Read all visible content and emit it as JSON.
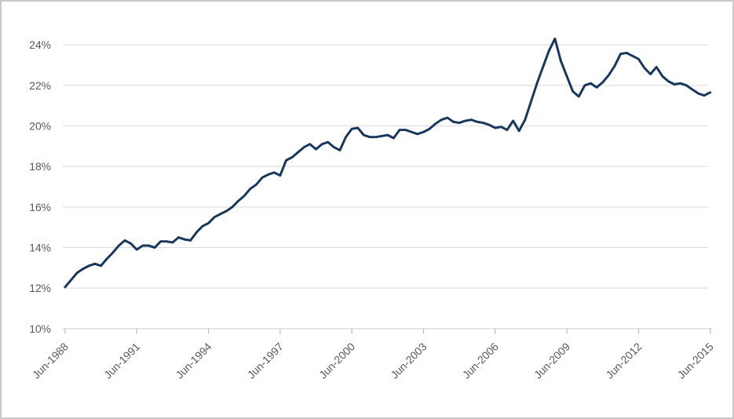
{
  "page": {
    "background": "#ffffff",
    "frame_border_color": "#c9c9c9"
  },
  "style": {
    "gridline_color": "#d9d9d9",
    "axis_color": "#bfbfbf",
    "tick_color": "#bfbfbf",
    "label_color": "#595959",
    "line_width": 3
  },
  "chart_data": {
    "type": "line",
    "frequency": "quarterly",
    "x_start": "Jun-1988",
    "x_end": "Jun-2015",
    "x_tick_labels": [
      "Jun-1988",
      "Jun-1991",
      "Jun-1994",
      "Jun-1997",
      "Jun-2000",
      "Jun-2003",
      "Jun-2006",
      "Jun-2009",
      "Jun-2012",
      "Jun-2015"
    ],
    "x_ticks_every_n_points": 12,
    "y_tick_labels": [
      "10%",
      "12%",
      "14%",
      "16%",
      "18%",
      "20%",
      "22%",
      "24%"
    ],
    "ylim": [
      10,
      25
    ],
    "unit": "%",
    "grid": "horizontal",
    "legend": "none",
    "series": [
      {
        "name": "percentage-series",
        "color": "#17375E",
        "values": [
          12.05,
          12.4,
          12.75,
          12.95,
          13.1,
          13.2,
          13.1,
          13.45,
          13.75,
          14.1,
          14.35,
          14.2,
          13.9,
          14.1,
          14.1,
          14.0,
          14.3,
          14.3,
          14.25,
          14.5,
          14.4,
          14.35,
          14.75,
          15.05,
          15.2,
          15.5,
          15.65,
          15.8,
          16.0,
          16.3,
          16.55,
          16.9,
          17.1,
          17.45,
          17.6,
          17.7,
          17.55,
          18.3,
          18.45,
          18.7,
          18.95,
          19.1,
          18.85,
          19.1,
          19.2,
          18.95,
          18.8,
          19.45,
          19.85,
          19.9,
          19.55,
          19.45,
          19.45,
          19.5,
          19.55,
          19.4,
          19.8,
          19.8,
          19.7,
          19.6,
          19.7,
          19.85,
          20.1,
          20.3,
          20.4,
          20.2,
          20.15,
          20.25,
          20.3,
          20.2,
          20.15,
          20.05,
          19.9,
          19.95,
          19.8,
          20.25,
          19.75,
          20.3,
          21.2,
          22.1,
          22.9,
          23.7,
          24.3,
          23.2,
          22.45,
          21.7,
          21.45,
          22.0,
          22.1,
          21.9,
          22.15,
          22.5,
          22.95,
          23.55,
          23.6,
          23.45,
          23.3,
          22.85,
          22.55,
          22.9,
          22.45,
          22.2,
          22.05,
          22.1,
          22.0,
          21.8,
          21.6,
          21.5,
          21.65
        ]
      }
    ]
  }
}
